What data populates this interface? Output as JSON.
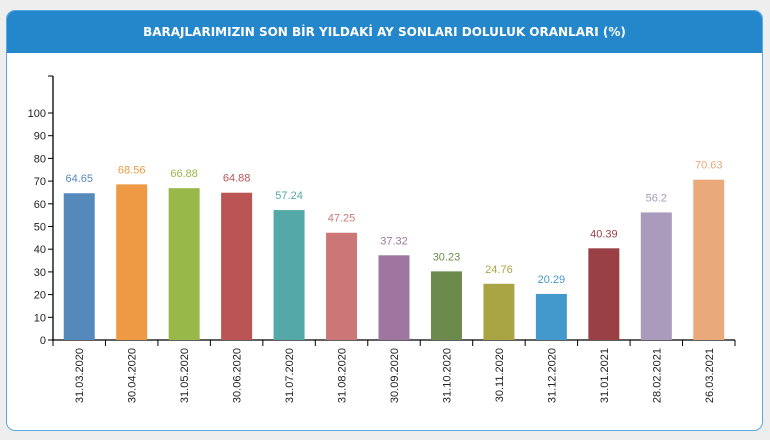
{
  "chart_data": {
    "type": "bar",
    "title": "BARAJLARIMIZIN SON BİR YILDAKİ AY SONLARI DOLULUK ORANLARI (%)",
    "xlabel": "",
    "ylabel": "",
    "ylim": [
      0,
      100
    ],
    "yticks": [
      "0",
      "10",
      "20",
      "30",
      "40",
      "50",
      "60",
      "70",
      "80",
      "90",
      "100"
    ],
    "categories": [
      "31.03.2020",
      "30.04.2020",
      "31.05.2020",
      "30.06.2020",
      "31.07.2020",
      "31.08.2020",
      "30.09.2020",
      "31.10.2020",
      "30.11.2020",
      "31.12.2020",
      "31.01.2021",
      "28.02.2021",
      "26.03.2021"
    ],
    "values": [
      64.65,
      68.56,
      66.88,
      64.88,
      57.24,
      47.25,
      37.32,
      30.23,
      24.76,
      20.29,
      40.39,
      56.2,
      70.63
    ],
    "labels": [
      "64.65",
      "68.56",
      "66.88",
      "64.88",
      "57.24",
      "47.25",
      "37.32",
      "30.23",
      "24.76",
      "20.29",
      "40.39",
      "56.2",
      "70.63"
    ],
    "colors": [
      "#5588bb",
      "#ee9944",
      "#99b84a",
      "#bb5555",
      "#55a8a8",
      "#cc7777",
      "#9e76a0",
      "#6b8a4b",
      "#aaa544",
      "#4499cc",
      "#994044",
      "#aa9abb",
      "#eaa97b"
    ],
    "grid": false
  }
}
